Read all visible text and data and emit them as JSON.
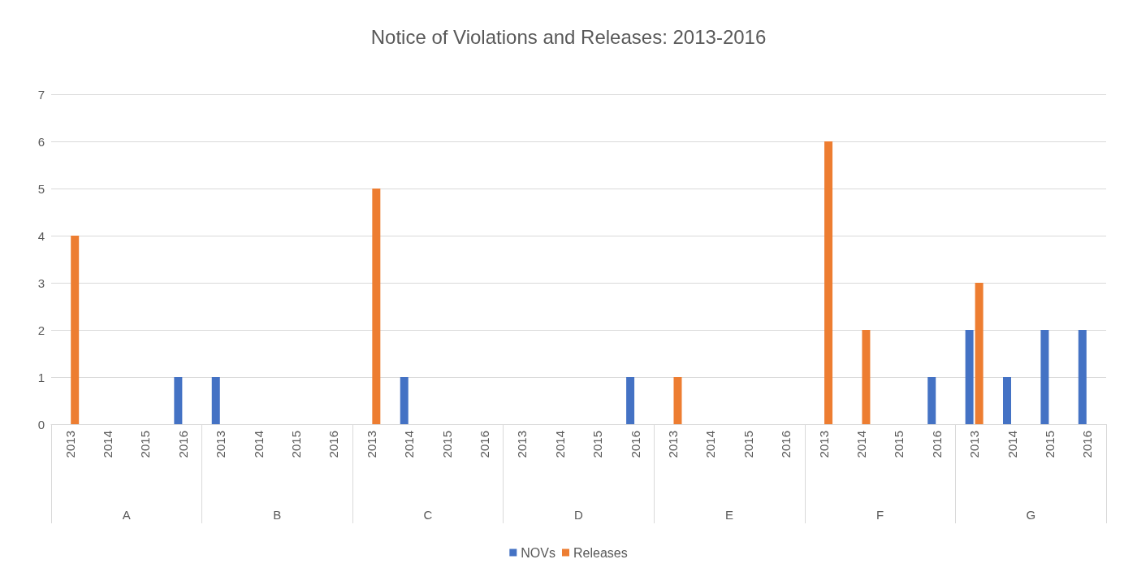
{
  "chart_data": {
    "type": "bar",
    "title": "Notice of Violations and Releases: 2013-2016",
    "categories": [
      "2013",
      "2014",
      "2015",
      "2016",
      "2013",
      "2014",
      "2015",
      "2016",
      "2013",
      "2014",
      "2015",
      "2016",
      "2013",
      "2014",
      "2015",
      "2016",
      "2013",
      "2014",
      "2015",
      "2016",
      "2013",
      "2014",
      "2015",
      "2016",
      "2013",
      "2014",
      "2015",
      "2016"
    ],
    "annotations": [
      "A",
      "B",
      "C",
      "D",
      "E",
      "F",
      "G"
    ],
    "series": [
      {
        "name": "NOVs",
        "color": "#4472c4",
        "values": [
          0,
          0,
          0,
          1,
          1,
          0,
          0,
          0,
          0,
          1,
          0,
          0,
          0,
          0,
          0,
          1,
          0,
          0,
          0,
          0,
          0,
          0,
          0,
          1,
          2,
          1,
          2,
          2
        ]
      },
      {
        "name": "Releases",
        "color": "#ed7d31",
        "values": [
          4,
          0,
          0,
          0,
          0,
          0,
          0,
          0,
          5,
          0,
          0,
          0,
          0,
          0,
          0,
          0,
          1,
          0,
          0,
          0,
          6,
          2,
          0,
          0,
          3,
          0,
          0,
          0
        ]
      }
    ],
    "ylim": [
      0,
      7
    ],
    "yticks": [
      0,
      1,
      2,
      3,
      4,
      5,
      6,
      7
    ],
    "grid": "y",
    "legend": "bottom"
  }
}
